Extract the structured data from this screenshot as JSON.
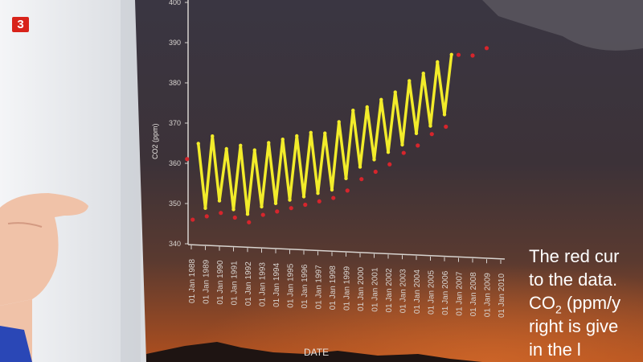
{
  "channel_logo": {
    "text": "3",
    "color": "#d8231a"
  },
  "poster": {
    "chart_data": {
      "type": "scatter",
      "xlabel": "DATE",
      "ylabel": "CO2 (ppm)",
      "ylim": [
        340,
        400
      ],
      "y_ticks": [
        340,
        350,
        360,
        370,
        380,
        390,
        400
      ],
      "x_tick_labels": [
        "01 Jan 1988",
        "01 Jan 1989",
        "01 Jan 1990",
        "01 Jan 1991",
        "01 Jan 1992",
        "01 Jan 1993",
        "01 Jan 1994",
        "01 Jan 1995",
        "01 Jan 1996",
        "01 Jan 1997",
        "01 Jan 1998",
        "01 Jan 1999",
        "01 Jan 2000",
        "01 Jan 2001",
        "01 Jan 2002",
        "01 Jan 2003",
        "01 Jan 2004",
        "01 Jan 2005",
        "01 Jan 2006",
        "01 Jan 2007",
        "01 Jan 2008",
        "01 Jan 2009",
        "01 Jan 2010"
      ],
      "series": [
        {
          "color": "#f2ec2a",
          "x": [
            1988.5,
            1989,
            1989.5,
            1990,
            1990.5,
            1991,
            1991.5,
            1992,
            1992.5,
            1993,
            1993.5,
            1994,
            1994.5,
            1995,
            1995.5,
            1996,
            1996.5,
            1997,
            1997.5,
            1998,
            1998.5,
            1999,
            1999.5,
            2000,
            2000.5,
            2001,
            2001.5,
            2002,
            2002.5,
            2003,
            2003.5,
            2004,
            2004.5,
            2005,
            2005.5,
            2006,
            2006.5
          ],
          "y": [
            365,
            349,
            367,
            351,
            364,
            349,
            365,
            348,
            364,
            350,
            366,
            351,
            367,
            352,
            368,
            353,
            369,
            354,
            369,
            355,
            372,
            358,
            375,
            361,
            376,
            363,
            378,
            365,
            380,
            367,
            383,
            370,
            385,
            372,
            388,
            375,
            390
          ]
        },
        {
          "color": "#d6252c",
          "x": [
            1987.7,
            1988.1,
            1989.1,
            1990.1,
            1991.1,
            1992.1,
            1993.1,
            1994.1,
            1995.1,
            1996.1,
            1997.1,
            1998.1,
            1999.1,
            2000.1,
            2001.1,
            2002.1,
            2003.1,
            2004.1,
            2005.1,
            2006.1,
            2007.0,
            2008.0,
            2009.0
          ],
          "y": [
            361,
            346,
            347,
            348,
            347,
            346,
            348,
            349,
            350,
            351,
            352,
            353,
            355,
            358,
            360,
            362,
            365,
            367,
            370,
            372,
            390,
            390,
            392
          ]
        }
      ]
    },
    "caption_lines": [
      "The red cur",
      "to the data.",
      "CO",
      "2",
      " (ppm/y",
      "right is give",
      "in the l"
    ]
  }
}
